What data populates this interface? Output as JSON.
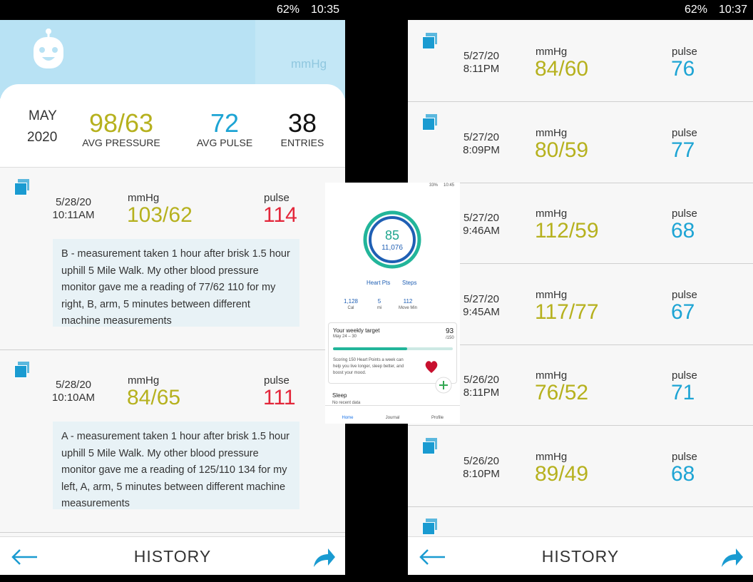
{
  "left": {
    "status_bar": {
      "battery": "62%",
      "time": "10:35"
    },
    "header_unit": "mmHg",
    "summary": {
      "month": "MAY",
      "year": "2020",
      "avg_pressure": "98/63",
      "avg_pressure_label": "AVG PRESSURE",
      "avg_pulse": "72",
      "avg_pulse_label": "AVG PULSE",
      "entries": "38",
      "entries_label": "ENTRIES"
    },
    "entries": [
      {
        "date": "5/28/20",
        "time": "10:11AM",
        "unit": "mmHg",
        "pressure": "103/62",
        "pulse_label": "pulse",
        "pulse": "114",
        "note": "B - measurement taken 1 hour after brisk 1.5 hour uphill 5 Mile Walk. My other blood pressure monitor gave me a reading of 77/62 110 for my right, B, arm, 5 minutes between different machine measurements"
      },
      {
        "date": "5/28/20",
        "time": "10:10AM",
        "unit": "mmHg",
        "pressure": "84/65",
        "pulse_label": "pulse",
        "pulse": "111",
        "note": "A - measurement taken 1 hour after brisk 1.5 hour uphill 5 Mile Walk. My other blood pressure monitor gave me a reading of 125/110 134 for my left, A, arm, 5 minutes between different machine measurements"
      }
    ],
    "nav_title": "HISTORY"
  },
  "right": {
    "status_bar": {
      "battery": "62%",
      "time": "10:37"
    },
    "entries": [
      {
        "date": "5/27/20",
        "time": "8:11PM",
        "unit": "mmHg",
        "pressure": "84/60",
        "pulse_label": "pulse",
        "pulse": "76"
      },
      {
        "date": "5/27/20",
        "time": "8:09PM",
        "unit": "mmHg",
        "pressure": "80/59",
        "pulse_label": "pulse",
        "pulse": "77"
      },
      {
        "date": "5/27/20",
        "time": "9:46AM",
        "unit": "mmHg",
        "pressure": "112/59",
        "pulse_label": "pulse",
        "pulse": "68"
      },
      {
        "date": "5/27/20",
        "time": "9:45AM",
        "unit": "mmHg",
        "pressure": "117/77",
        "pulse_label": "pulse",
        "pulse": "67"
      },
      {
        "date": "5/26/20",
        "time": "8:11PM",
        "unit": "mmHg",
        "pressure": "76/52",
        "pulse_label": "pulse",
        "pulse": "71"
      },
      {
        "date": "5/26/20",
        "time": "8:10PM",
        "unit": "mmHg",
        "pressure": "89/49",
        "pulse_label": "pulse",
        "pulse": "68"
      }
    ],
    "nav_title": "HISTORY"
  },
  "fit": {
    "status_bar": {
      "battery": "33%",
      "time": "10:45"
    },
    "heart_points": "85",
    "steps": "11,076",
    "legend": [
      "Heart Pts",
      "Steps"
    ],
    "stats": [
      {
        "value": "1,128",
        "label": "Cal"
      },
      {
        "value": "5",
        "label": "mi"
      },
      {
        "value": "112",
        "label": "Move Min"
      }
    ],
    "card": {
      "title": "Your weekly target",
      "dates": "May 24 – 30",
      "value": "93",
      "target": "/150",
      "text": "Scoring 150 Heart Points a week can help you live longer, sleep better, and boost your mood."
    },
    "sleep": {
      "title": "Sleep",
      "text": "No recent data"
    },
    "nav": [
      "Home",
      "Journal",
      "Profile"
    ]
  }
}
